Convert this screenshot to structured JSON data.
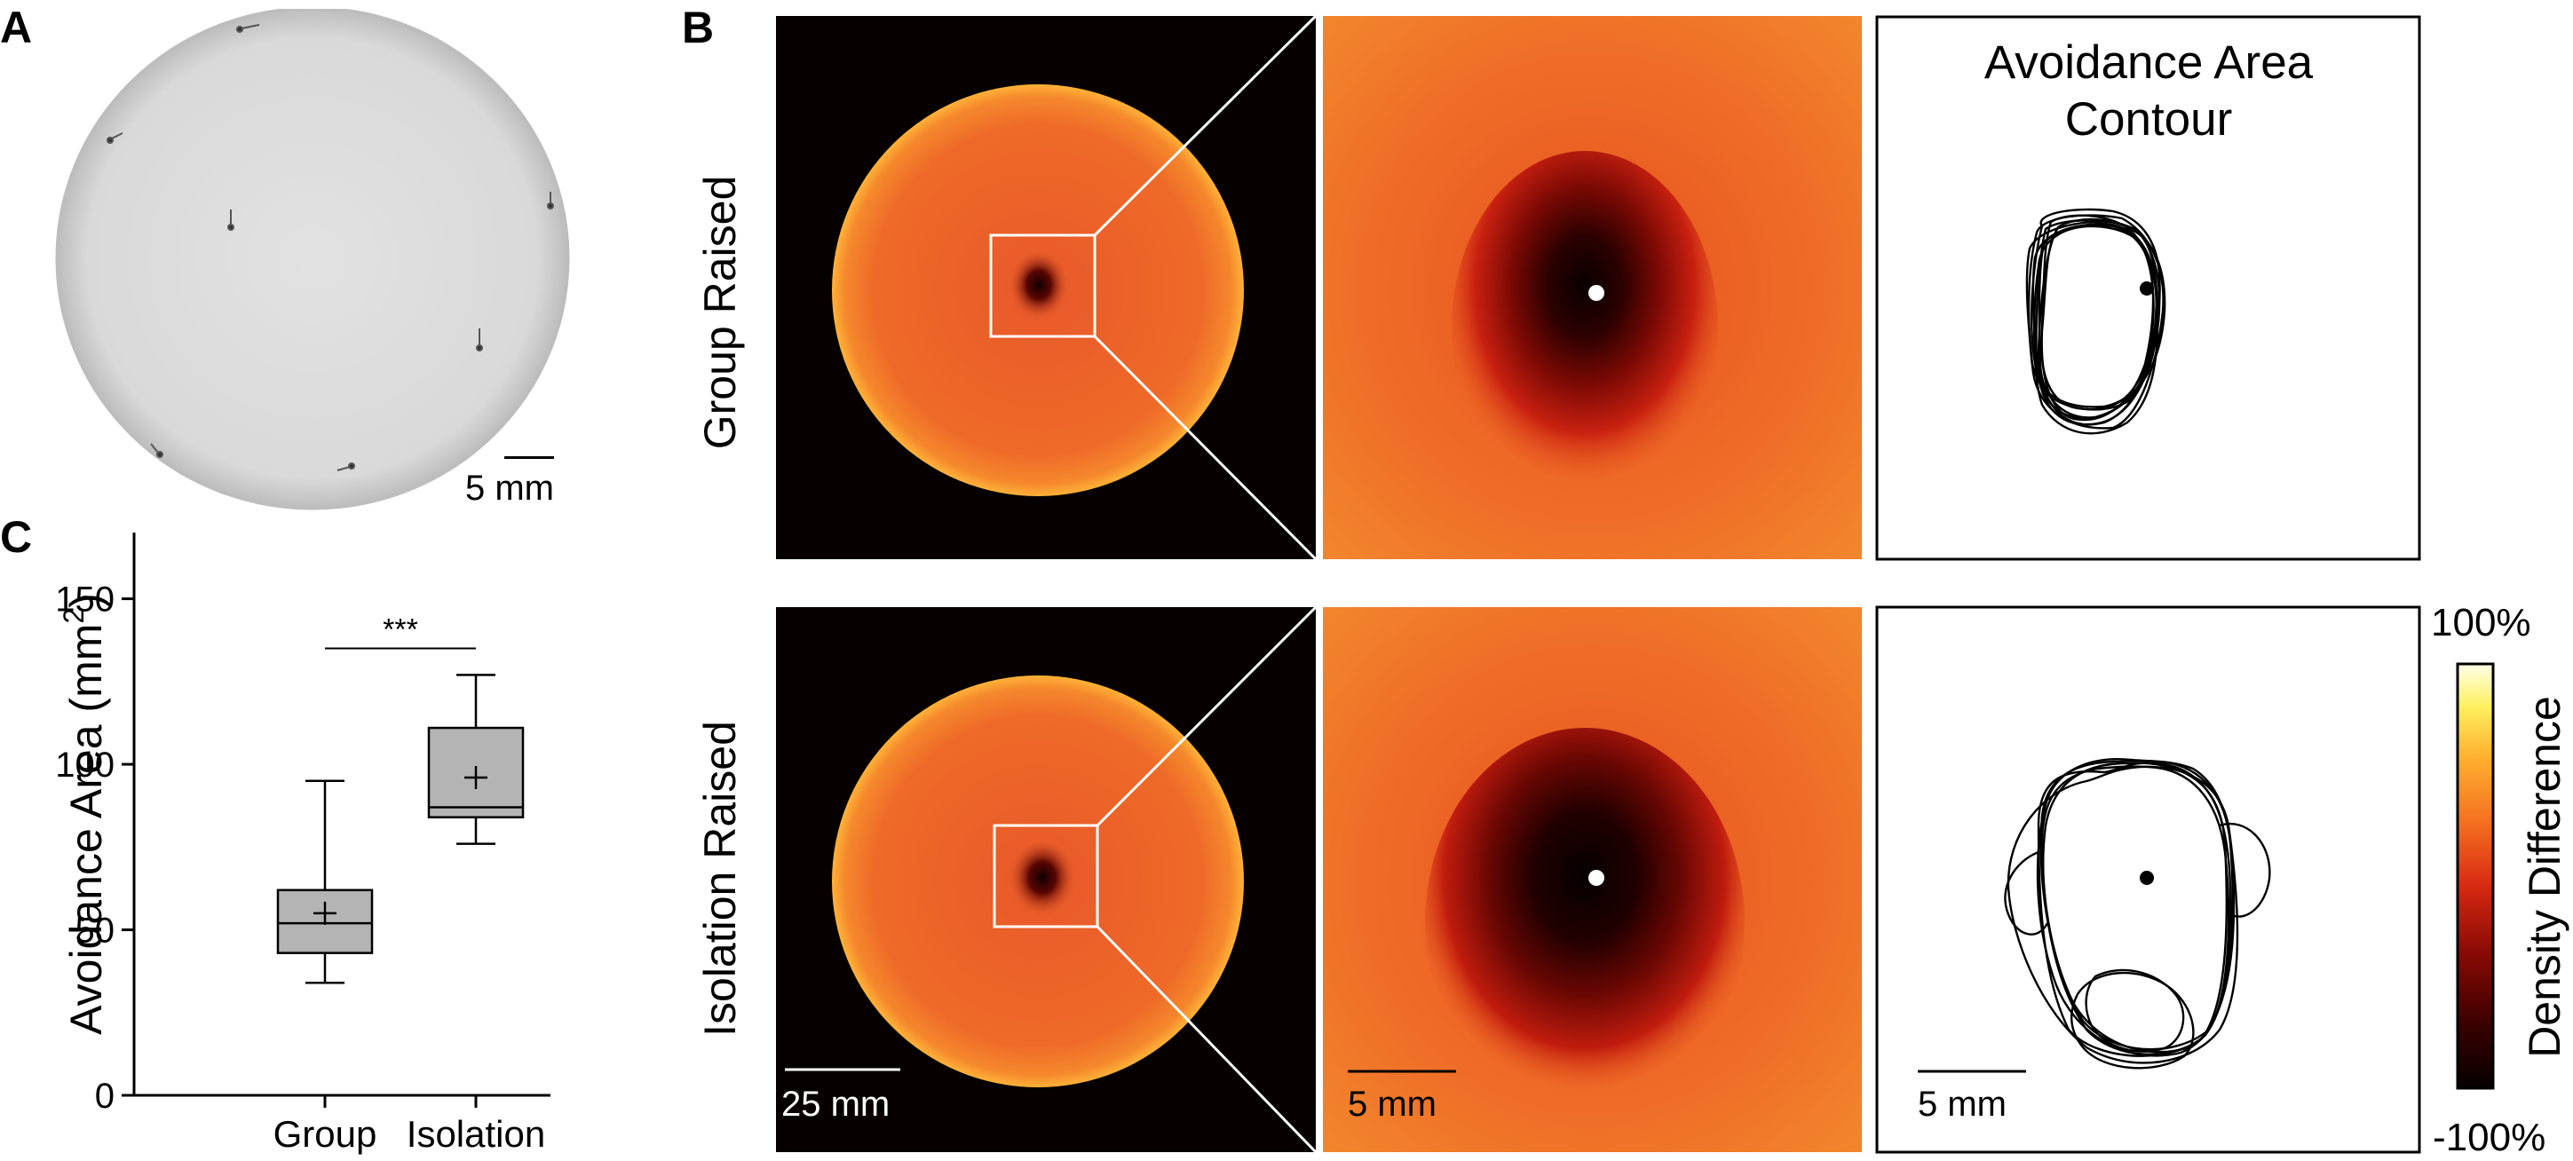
{
  "panels": {
    "a": "A",
    "b": "B",
    "c": "C"
  },
  "panel_a": {
    "scale_label": "5 mm"
  },
  "panel_b": {
    "rows": [
      {
        "label": "Group Raised",
        "contour_title_line1": "Avoidance Area",
        "contour_title_line2": "Contour"
      },
      {
        "label": "Isolation Raised",
        "arena_scale": "25 mm",
        "zoom_scale": "5 mm",
        "contour_scale": "5 mm"
      }
    ],
    "colorbar": {
      "label": "Density Difference",
      "max_label": "100%",
      "min_label": "-100%",
      "stops": [
        "#050000",
        "#3a0000",
        "#8a0a05",
        "#d82a12",
        "#f46d1f",
        "#ffb030",
        "#fff060",
        "#ffffe8"
      ]
    }
  },
  "chart_data": {
    "type": "box",
    "ylabel": "Avoidance Area (mm²)",
    "ylim": [
      0,
      170
    ],
    "yticks": [
      0,
      50,
      100,
      150
    ],
    "categories": [
      "Group Raised",
      "Isolation Raised"
    ],
    "boxes": [
      {
        "category": "Group Raised",
        "whisker_low": 34,
        "q1": 43,
        "median": 52,
        "q3": 62,
        "whisker_high": 95,
        "mean": 55
      },
      {
        "category": "Isolation Raised",
        "whisker_low": 76,
        "q1": 84,
        "median": 87,
        "q3": 111,
        "whisker_high": 127,
        "mean": 96
      }
    ],
    "significance": {
      "label": "***",
      "y": 135
    },
    "box_color": "#b4b4b4"
  }
}
